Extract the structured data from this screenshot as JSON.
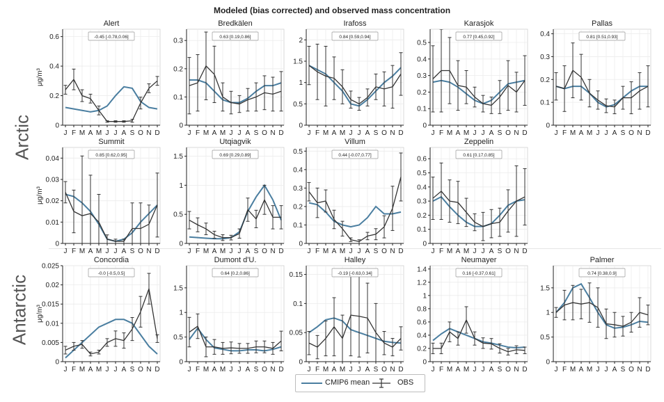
{
  "title": "Modeled (bias corrected) and observed mass concentration",
  "regions": [
    "Arctic",
    "Antarctic"
  ],
  "legend": {
    "model_label": "CMIP6 mean",
    "obs_label": "OBS"
  },
  "colors": {
    "model": "#4a7ea0",
    "obs": "#333333",
    "members": "#bcd4e2",
    "grid": "#ececec"
  },
  "months": [
    "J",
    "F",
    "M",
    "A",
    "M",
    "J",
    "J",
    "A",
    "S",
    "O",
    "N",
    "D"
  ],
  "ylabel": "μg/m³",
  "chart_data": [
    {
      "type": "line",
      "station": "Alert",
      "region": "Arctic",
      "corr": "-0.45 [-0.78,0.06]",
      "ylim": [
        0,
        0.65
      ],
      "yticks": [
        0,
        0.2,
        0.4,
        0.6
      ],
      "ylabel": "μg/m³",
      "series": [
        {
          "name": "CMIP6 mean",
          "values": [
            0.12,
            0.11,
            0.1,
            0.09,
            0.1,
            0.13,
            0.2,
            0.26,
            0.25,
            0.16,
            0.12,
            0.11
          ]
        },
        {
          "name": "OBS",
          "values": [
            0.24,
            0.31,
            0.2,
            0.18,
            0.1,
            0.025,
            0.025,
            0.025,
            0.03,
            0.15,
            0.25,
            0.3
          ],
          "err": [
            0.03,
            0.07,
            0.04,
            0.03,
            0.03,
            0.005,
            0.005,
            0.005,
            0.01,
            0.04,
            0.03,
            0.03
          ]
        }
      ]
    },
    {
      "type": "line",
      "station": "Bredkälen",
      "region": "Arctic",
      "corr": "0.63 [0.19,0.86]",
      "ylim": [
        0,
        0.34
      ],
      "yticks": [
        0,
        0.1,
        0.2,
        0.3
      ],
      "ylabel": "",
      "series": [
        {
          "name": "CMIP6 mean",
          "values": [
            0.16,
            0.16,
            0.15,
            0.12,
            0.09,
            0.08,
            0.08,
            0.095,
            0.12,
            0.14,
            0.14,
            0.15
          ]
        },
        {
          "name": "OBS",
          "values": [
            0.14,
            0.15,
            0.21,
            0.18,
            0.1,
            0.08,
            0.075,
            0.09,
            0.1,
            0.115,
            0.11,
            0.12
          ],
          "err": [
            0.1,
            0.1,
            0.12,
            0.1,
            0.05,
            0.04,
            0.03,
            0.04,
            0.05,
            0.06,
            0.06,
            0.07
          ]
        }
      ]
    },
    {
      "type": "line",
      "station": "Irafoss",
      "region": "Arctic",
      "corr": "0.84 [0.59,0.94]",
      "ylim": [
        0,
        2.25
      ],
      "yticks": [
        0,
        0.5,
        1,
        1.5,
        2
      ],
      "ylabel": "",
      "series": [
        {
          "name": "CMIP6 mean",
          "values": [
            1.4,
            1.3,
            1.2,
            1.0,
            0.8,
            0.5,
            0.45,
            0.6,
            0.8,
            1.0,
            1.15,
            1.35
          ]
        },
        {
          "name": "OBS",
          "values": [
            1.4,
            1.25,
            1.15,
            1.1,
            0.9,
            0.6,
            0.5,
            0.65,
            0.9,
            0.85,
            0.9,
            1.2
          ],
          "err": [
            0.45,
            0.65,
            0.7,
            0.5,
            0.4,
            0.2,
            0.15,
            0.2,
            0.3,
            0.4,
            0.5,
            0.5
          ]
        }
      ]
    },
    {
      "type": "line",
      "station": "Karasjok",
      "region": "Arctic",
      "corr": "0.77 [0.45,0.92]",
      "ylim": [
        0,
        0.58
      ],
      "yticks": [
        0,
        0.1,
        0.2,
        0.3,
        0.4,
        0.5
      ],
      "ylabel": "",
      "series": [
        {
          "name": "CMIP6 mean",
          "values": [
            0.26,
            0.27,
            0.26,
            0.23,
            0.19,
            0.15,
            0.13,
            0.15,
            0.2,
            0.25,
            0.26,
            0.27
          ]
        },
        {
          "name": "OBS",
          "values": [
            0.28,
            0.33,
            0.33,
            0.24,
            0.23,
            0.17,
            0.13,
            0.12,
            0.17,
            0.24,
            0.2,
            0.27
          ],
          "err": [
            0.2,
            0.25,
            0.2,
            0.15,
            0.1,
            0.06,
            0.05,
            0.05,
            0.1,
            0.15,
            0.12,
            0.15
          ]
        }
      ]
    },
    {
      "type": "line",
      "station": "Pallas",
      "region": "Arctic",
      "corr": "0.81 [0.51,0.93]",
      "ylim": [
        0,
        0.42
      ],
      "yticks": [
        0,
        0.1,
        0.2,
        0.3,
        0.4
      ],
      "ylabel": "",
      "series": [
        {
          "name": "CMIP6 mean",
          "values": [
            0.17,
            0.16,
            0.17,
            0.17,
            0.14,
            0.1,
            0.08,
            0.09,
            0.12,
            0.15,
            0.17,
            0.17
          ]
        },
        {
          "name": "OBS",
          "values": [
            0.17,
            0.16,
            0.24,
            0.21,
            0.14,
            0.11,
            0.085,
            0.08,
            0.12,
            0.12,
            0.15,
            0.17
          ],
          "err": [
            0.06,
            0.1,
            0.12,
            0.1,
            0.06,
            0.04,
            0.03,
            0.03,
            0.05,
            0.07,
            0.08,
            0.09
          ]
        }
      ]
    },
    {
      "type": "line",
      "station": "Summit",
      "region": "Arctic",
      "corr": "0.85 [0.62,0.95]",
      "ylim": [
        0,
        0.045
      ],
      "yticks": [
        0,
        0.01,
        0.02,
        0.03,
        0.04
      ],
      "ylabel": "μg/m³",
      "series": [
        {
          "name": "CMIP6 mean",
          "values": [
            0.023,
            0.022,
            0.019,
            0.015,
            0.009,
            0.002,
            0.001,
            0.002,
            0.005,
            0.01,
            0.014,
            0.018
          ]
        },
        {
          "name": "OBS",
          "values": [
            0.024,
            0.015,
            0.013,
            0.014,
            0.01,
            0.002,
            0.001,
            0.001,
            0.007,
            0.007,
            0.009,
            0.018
          ],
          "err": [
            0.005,
            0.01,
            0.028,
            0.018,
            0.013,
            0.002,
            0.001,
            0.001,
            0.012,
            0.012,
            0.009,
            0.015
          ]
        }
      ]
    },
    {
      "type": "line",
      "station": "Utqiagvik",
      "region": "Arctic",
      "corr": "0.69 [0.29,0.89]",
      "ylim": [
        0,
        1.65
      ],
      "yticks": [
        0,
        0.5,
        1,
        1.5
      ],
      "ylabel": "",
      "series": [
        {
          "name": "CMIP6 mean",
          "values": [
            0.11,
            0.1,
            0.09,
            0.08,
            0.08,
            0.1,
            0.2,
            0.55,
            0.8,
            1.0,
            0.75,
            0.4
          ]
        },
        {
          "name": "OBS",
          "values": [
            0.4,
            0.32,
            0.25,
            0.15,
            0.1,
            0.1,
            0.17,
            0.58,
            0.42,
            0.75,
            0.45,
            0.45
          ],
          "err": [
            0.15,
            0.12,
            0.1,
            0.06,
            0.05,
            0.04,
            0.08,
            0.2,
            0.15,
            0.25,
            0.2,
            0.2
          ]
        }
      ]
    },
    {
      "type": "line",
      "station": "Villum",
      "region": "Arctic",
      "corr": "0.44 [-0.07,0.77]",
      "ylim": [
        0,
        0.52
      ],
      "yticks": [
        0,
        0.1,
        0.2,
        0.3,
        0.4,
        0.5
      ],
      "ylabel": "",
      "series": [
        {
          "name": "CMIP6 mean",
          "values": [
            0.22,
            0.21,
            0.17,
            0.12,
            0.1,
            0.09,
            0.1,
            0.14,
            0.2,
            0.16,
            0.16,
            0.17
          ]
        },
        {
          "name": "OBS",
          "values": [
            0.28,
            0.22,
            0.23,
            0.13,
            0.08,
            0.02,
            0.01,
            0.04,
            0.05,
            0.09,
            0.19,
            0.36
          ],
          "err": [
            0.05,
            0.08,
            0.06,
            0.05,
            0.04,
            0.01,
            0.01,
            0.02,
            0.03,
            0.06,
            0.12,
            0.13
          ]
        }
      ]
    },
    {
      "type": "line",
      "station": "Zeppelin",
      "region": "Arctic",
      "corr": "0.61 [0.17,0.85]",
      "ylim": [
        0,
        0.68
      ],
      "yticks": [
        0,
        0.1,
        0.2,
        0.3,
        0.4,
        0.5,
        0.6
      ],
      "ylabel": "",
      "series": [
        {
          "name": "CMIP6 mean",
          "values": [
            0.3,
            0.33,
            0.26,
            0.2,
            0.15,
            0.12,
            0.12,
            0.14,
            0.2,
            0.27,
            0.3,
            0.31
          ]
        },
        {
          "name": "OBS",
          "values": [
            0.32,
            0.37,
            0.3,
            0.29,
            0.22,
            0.15,
            0.12,
            0.14,
            0.15,
            0.23,
            0.3,
            0.33
          ],
          "err": [
            0.15,
            0.2,
            0.15,
            0.15,
            0.1,
            0.06,
            0.1,
            0.1,
            0.1,
            0.15,
            0.25,
            0.2
          ]
        }
      ]
    },
    {
      "type": "line",
      "station": "Concordia",
      "region": "Antarctic",
      "corr": "-0.0 [-0.5,0.5]",
      "ylim": [
        0,
        0.025
      ],
      "yticks": [
        0,
        0.005,
        0.01,
        0.015,
        0.02,
        0.025
      ],
      "ylabel": "μg/m³",
      "series": [
        {
          "name": "CMIP6 mean",
          "values": [
            0.001,
            0.003,
            0.005,
            0.007,
            0.009,
            0.01,
            0.011,
            0.011,
            0.01,
            0.007,
            0.004,
            0.002
          ]
        },
        {
          "name": "OBS",
          "values": [
            0.003,
            0.004,
            0.0045,
            0.002,
            0.0025,
            0.005,
            0.006,
            0.0055,
            0.0085,
            0.013,
            0.019,
            0.006
          ],
          "err": [
            0.001,
            0.001,
            0.001,
            0.0005,
            0.0005,
            0.001,
            0.002,
            0.002,
            0.003,
            0.004,
            0.004,
            0.001
          ]
        }
      ]
    },
    {
      "type": "line",
      "station": "Dumont d'U.",
      "region": "Antarctic",
      "corr": "0.64 [0.2,0.86]",
      "ylim": [
        0,
        1.95
      ],
      "yticks": [
        0,
        0.5,
        1,
        1.5
      ],
      "ylabel": "",
      "series": [
        {
          "name": "CMIP6 mean",
          "values": [
            0.45,
            0.68,
            0.45,
            0.28,
            0.25,
            0.22,
            0.22,
            0.24,
            0.24,
            0.22,
            0.25,
            0.3
          ]
        },
        {
          "name": "OBS",
          "values": [
            0.6,
            0.72,
            0.3,
            0.3,
            0.27,
            0.28,
            0.27,
            0.27,
            0.3,
            0.3,
            0.27,
            0.42
          ],
          "err": [
            0.3,
            0.25,
            0.2,
            0.15,
            0.12,
            0.12,
            0.1,
            0.1,
            0.12,
            0.12,
            0.12,
            0.2
          ]
        }
      ]
    },
    {
      "type": "line",
      "station": "Halley",
      "region": "Antarctic",
      "corr": "-0.19 [-0.63,0.34]",
      "ylim": [
        0,
        0.165
      ],
      "yticks": [
        0,
        0.05,
        0.1,
        0.15
      ],
      "ylabel": "",
      "series": [
        {
          "name": "CMIP6 mean",
          "values": [
            0.05,
            0.06,
            0.072,
            0.075,
            0.07,
            0.055,
            0.05,
            0.045,
            0.04,
            0.035,
            0.033,
            0.032
          ]
        },
        {
          "name": "OBS",
          "values": [
            0.032,
            0.025,
            0.04,
            0.06,
            0.04,
            0.08,
            0.078,
            0.075,
            0.05,
            0.032,
            0.025,
            0.04
          ],
          "err": [
            0.02,
            0.02,
            0.03,
            0.05,
            0.04,
            0.07,
            0.07,
            0.06,
            0.05,
            0.02,
            0.015,
            0.02
          ]
        }
      ]
    },
    {
      "type": "line",
      "station": "Neumayer",
      "region": "Antarctic",
      "corr": "0.16 [-0.37,0.61]",
      "ylim": [
        0,
        1.45
      ],
      "yticks": [
        0,
        0.2,
        0.4,
        0.6,
        0.8,
        1,
        1.2,
        1.4
      ],
      "ylabel": "",
      "series": [
        {
          "name": "CMIP6 mean",
          "values": [
            0.32,
            0.42,
            0.5,
            0.45,
            0.4,
            0.35,
            0.3,
            0.28,
            0.25,
            0.22,
            0.21,
            0.22
          ]
        },
        {
          "name": "OBS",
          "values": [
            0.2,
            0.2,
            0.45,
            0.35,
            0.63,
            0.35,
            0.28,
            0.27,
            0.2,
            0.15,
            0.18,
            0.17
          ],
          "err": [
            0.08,
            0.08,
            0.15,
            0.1,
            0.2,
            0.1,
            0.08,
            0.08,
            0.07,
            0.05,
            0.06,
            0.05
          ]
        }
      ]
    },
    {
      "type": "line",
      "station": "Palmer",
      "region": "Antarctic",
      "corr": "0.74 [0.38,0.9]",
      "ylim": [
        0,
        1.95
      ],
      "yticks": [
        0,
        0.5,
        1,
        1.5
      ],
      "ylabel": "",
      "series": [
        {
          "name": "CMIP6 mean",
          "values": [
            1.0,
            1.2,
            1.5,
            1.58,
            1.3,
            1.0,
            0.75,
            0.68,
            0.7,
            0.75,
            0.82,
            0.8
          ]
        },
        {
          "name": "OBS",
          "values": [
            1.0,
            1.15,
            1.2,
            1.17,
            1.2,
            1.1,
            0.77,
            0.75,
            0.72,
            0.8,
            1.0,
            0.95
          ],
          "err": [
            0.1,
            0.3,
            0.35,
            0.3,
            0.4,
            0.4,
            0.3,
            0.25,
            0.2,
            0.2,
            0.3,
            0.2
          ]
        }
      ]
    }
  ]
}
